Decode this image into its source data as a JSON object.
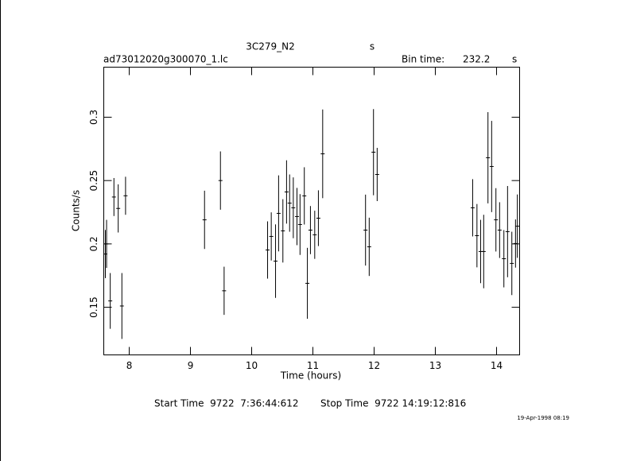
{
  "chart_data": {
    "type": "scatter",
    "title": "3C279_N2",
    "title_unit": "s",
    "file_name": "ad73012020g300070_1.lc",
    "bin_time_label": "Bin time:",
    "bin_time": "232.2",
    "bin_time_unit": "s",
    "x_label": "Time (hours)",
    "y_label": "Counts/s",
    "start_time": "Start Time  9722  7:36:44:612",
    "stop_time": "Stop Time  9722 14:19:12:816",
    "date_stamp": "19-Apr-1998 08:19",
    "color": "#000000",
    "xlim": [
      7.584,
      14.377
    ],
    "xticks": [
      8,
      9,
      10,
      11,
      12,
      13,
      14
    ],
    "ylim": [
      0.1124,
      0.3395
    ],
    "yticks": [
      0.15,
      0.2,
      0.25,
      0.3
    ],
    "x": [
      7.61,
      7.63,
      7.69,
      7.75,
      7.82,
      7.88,
      7.94,
      9.23,
      9.49,
      9.55,
      10.26,
      10.32,
      10.39,
      10.44,
      10.51,
      10.57,
      10.62,
      10.68,
      10.74,
      10.79,
      10.86,
      10.91,
      10.96,
      11.03,
      11.09,
      11.16,
      11.86,
      11.92,
      11.99,
      12.05,
      13.61,
      13.68,
      13.74,
      13.79,
      13.86,
      13.92,
      13.99,
      14.05,
      14.12,
      14.18,
      14.25,
      14.31,
      14.34
    ],
    "values": [
      0.192,
      0.2,
      0.155,
      0.237,
      0.228,
      0.151,
      0.238,
      0.219,
      0.25,
      0.163,
      0.1952,
      0.2059,
      0.1864,
      0.2241,
      0.2103,
      0.241,
      0.2322,
      0.2285,
      0.2216,
      0.2153,
      0.2379,
      0.1689,
      0.2109,
      0.2072,
      0.2203,
      0.2711,
      0.2109,
      0.1977,
      0.2724,
      0.2548,
      0.2285,
      0.2065,
      0.194,
      0.194,
      0.268,
      0.2611,
      0.219,
      0.2109,
      0.1883,
      0.2097,
      0.1846,
      0.2003,
      0.214
    ],
    "errors": [
      0.019,
      0.019,
      0.022,
      0.015,
      0.019,
      0.026,
      0.015,
      0.023,
      0.023,
      0.019,
      0.0226,
      0.019,
      0.029,
      0.03,
      0.025,
      0.025,
      0.0226,
      0.024,
      0.0226,
      0.024,
      0.0226,
      0.028,
      0.019,
      0.019,
      0.022,
      0.035,
      0.028,
      0.023,
      0.034,
      0.021,
      0.0226,
      0.025,
      0.025,
      0.029,
      0.036,
      0.036,
      0.025,
      0.022,
      0.0226,
      0.036,
      0.025,
      0.019,
      0.025
    ]
  }
}
